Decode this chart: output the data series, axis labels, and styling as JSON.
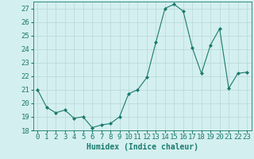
{
  "x": [
    0,
    1,
    2,
    3,
    4,
    5,
    6,
    7,
    8,
    9,
    10,
    11,
    12,
    13,
    14,
    15,
    16,
    17,
    18,
    19,
    20,
    21,
    22,
    23
  ],
  "y": [
    21,
    19.7,
    19.3,
    19.5,
    18.9,
    19.0,
    18.2,
    18.4,
    18.5,
    19.0,
    20.7,
    21.0,
    21.9,
    24.5,
    27.0,
    27.3,
    26.8,
    24.1,
    22.2,
    24.3,
    25.5,
    21.1,
    22.2,
    22.3
  ],
  "xlim": [
    -0.5,
    23.5
  ],
  "ylim": [
    18,
    27.5
  ],
  "yticks": [
    18,
    19,
    20,
    21,
    22,
    23,
    24,
    25,
    26,
    27
  ],
  "xticks": [
    0,
    1,
    2,
    3,
    4,
    5,
    6,
    7,
    8,
    9,
    10,
    11,
    12,
    13,
    14,
    15,
    16,
    17,
    18,
    19,
    20,
    21,
    22,
    23
  ],
  "xlabel": "Humidex (Indice chaleur)",
  "line_color": "#1a7a6e",
  "marker": "D",
  "marker_size": 2.0,
  "bg_color": "#d4efef",
  "grid_color": "#b8d8d8",
  "axis_color": "#1a7a6e",
  "tick_color": "#1a7a6e",
  "label_color": "#1a7a6e",
  "xlabel_fontsize": 7,
  "tick_fontsize": 6.5
}
